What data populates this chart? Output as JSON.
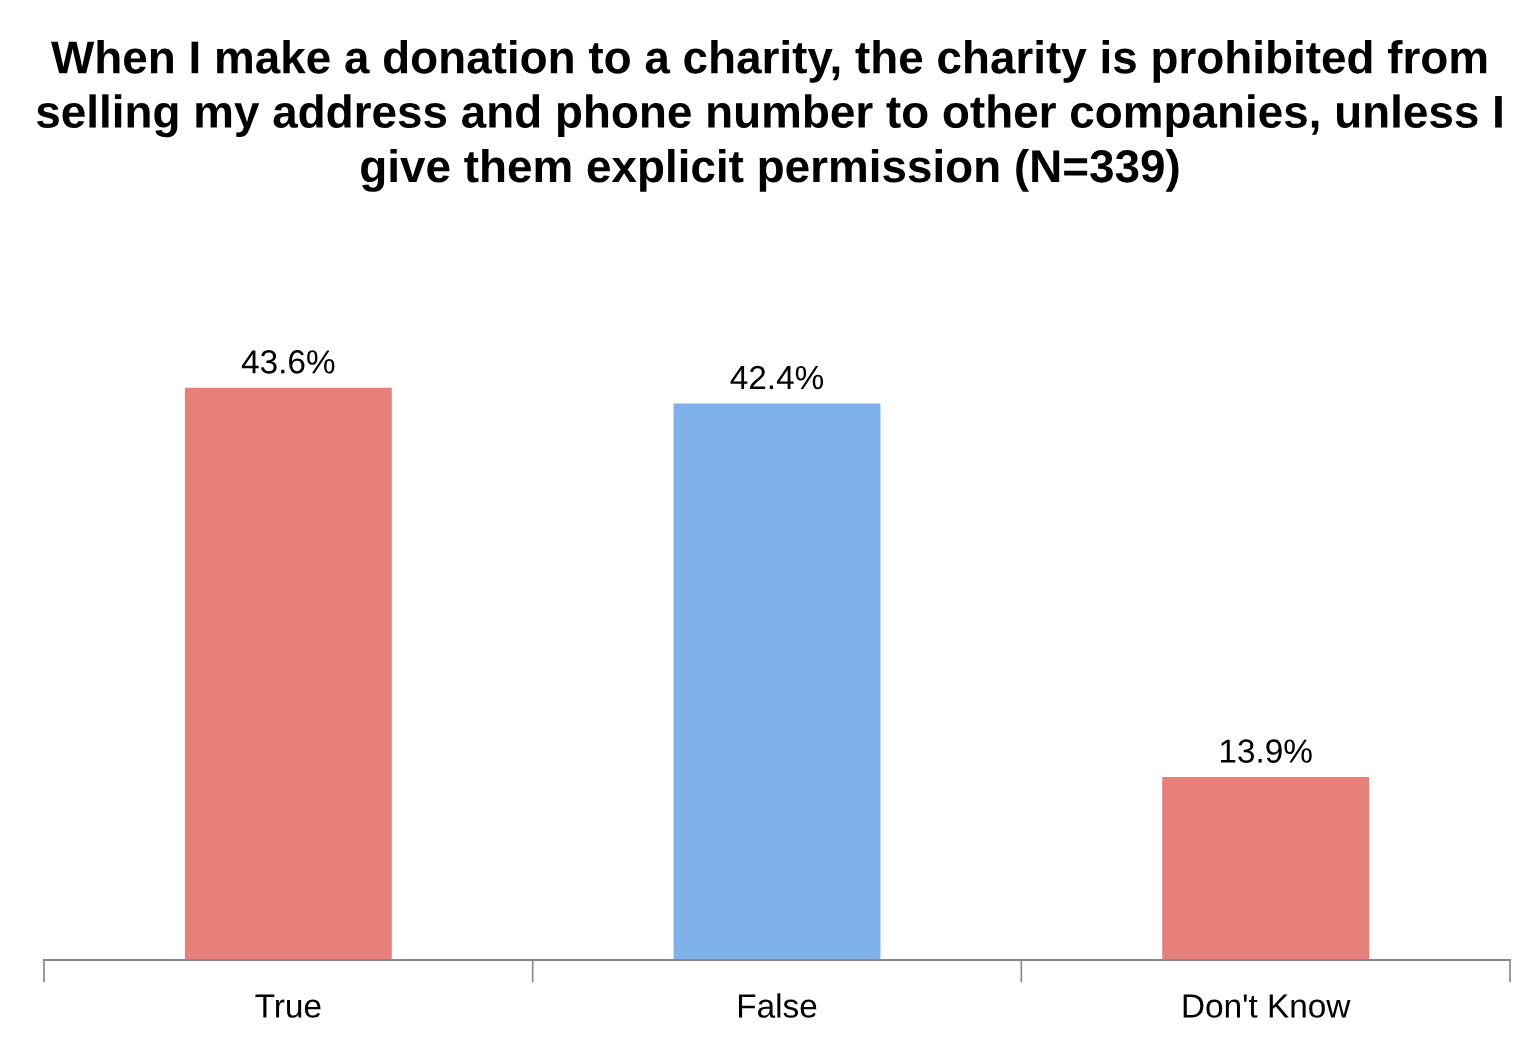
{
  "chart_data": {
    "type": "bar",
    "title": "When I make a donation to a charity, the charity is prohibited from selling my address and phone number to other companies, unless I give them explicit permission (N=339)",
    "categories": [
      "True",
      "False",
      "Don't Know"
    ],
    "values": [
      43.6,
      42.4,
      13.9
    ],
    "colors": [
      "#e8807a",
      "#7fb1ea",
      "#e8807a"
    ],
    "value_labels": [
      "43.6%",
      "42.4%",
      "13.9%"
    ],
    "grid": false,
    "legend": false
  }
}
